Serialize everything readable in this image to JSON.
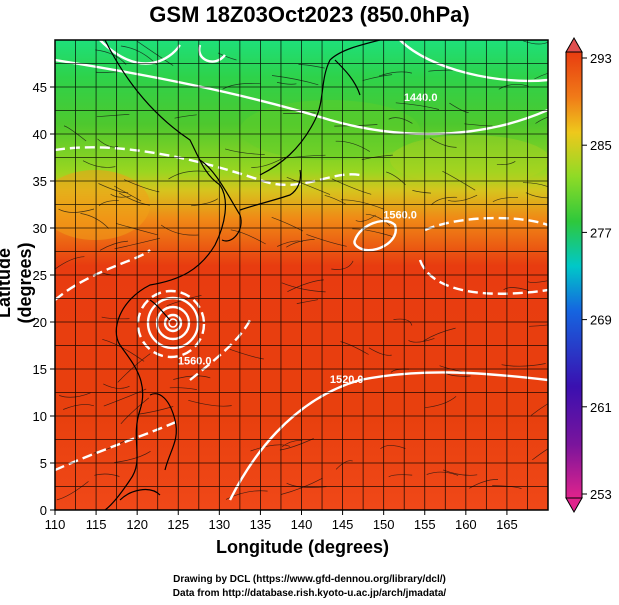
{
  "title": "GSM 18Z03Oct2023 (850.0hPa)",
  "xlabel": "Longitude (degrees)",
  "ylabel": "Latitude  (degrees)",
  "credits": [
    "Drawing by DCL (https://www.gfd-dennou.org/library/dcl/)",
    "Data from http://database.rish.kyoto-u.ac.jp/arch/jmadata/"
  ],
  "map": {
    "lon_range": [
      110,
      170
    ],
    "lat_range": [
      0,
      50
    ],
    "lon_ticks": [
      "110",
      "115",
      "120",
      "125",
      "130",
      "135",
      "140",
      "145",
      "150",
      "155",
      "160",
      "165"
    ],
    "lat_ticks": [
      "0",
      "5",
      "10",
      "15",
      "20",
      "25",
      "30",
      "35",
      "40",
      "45"
    ],
    "grid": true,
    "field": "temperature (K)",
    "contour_labels": [
      {
        "text": "1440.0",
        "lon": 154.5,
        "lat": 43.5
      },
      {
        "text": "1560.0",
        "lon": 152.0,
        "lat": 31.0
      },
      {
        "text": "1560.0",
        "lon": 127.0,
        "lat": 15.5
      },
      {
        "text": "1520.0",
        "lon": 145.5,
        "lat": 13.5
      }
    ],
    "typhoon_center": {
      "lon": 124.0,
      "lat": 22.0
    }
  },
  "colorbar": {
    "ticks": [
      "293",
      "285",
      "277",
      "269",
      "261",
      "253"
    ],
    "range": [
      253,
      293
    ],
    "colors": [
      "#e0238c",
      "#3a10b0",
      "#1565e0",
      "#00c8c8",
      "#2ec83c",
      "#8edb26",
      "#eec81c",
      "#f07a18",
      "#e83c10"
    ]
  }
}
